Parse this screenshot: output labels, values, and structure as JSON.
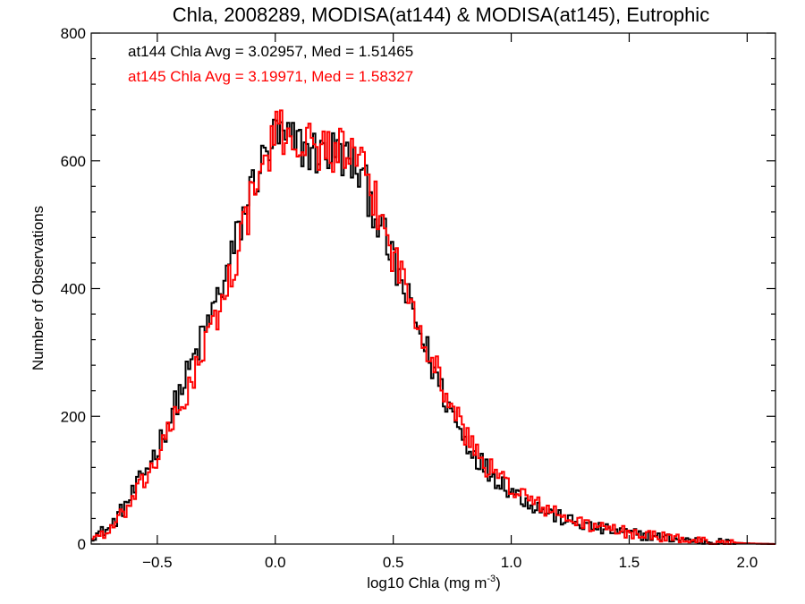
{
  "chart_data": {
    "type": "histogram-step",
    "title": "Chla, 2008289, MODISA(at144) & MODISA(at145), Eutrophic",
    "xlabel": "log10 Chla (mg m",
    "xlabel_sup": "-3",
    "xlabel_close": ")",
    "ylabel": "Number of Observations",
    "xlim": [
      -0.78,
      2.12
    ],
    "ylim": [
      0,
      800
    ],
    "xticks": [
      -0.5,
      0.0,
      0.5,
      1.0,
      1.5,
      2.0
    ],
    "xtick_labels": [
      "−0.5",
      "0.0",
      "0.5",
      "1.0",
      "1.5",
      "2.0"
    ],
    "yticks": [
      0,
      200,
      400,
      600,
      800
    ],
    "ytick_labels": [
      "0",
      "200",
      "400",
      "600",
      "800"
    ],
    "grid": false,
    "annotations": [
      {
        "text": "at144 Chla Avg = 3.02957, Med = 1.51465",
        "color": "#000000"
      },
      {
        "text": "at145 Chla Avg = 3.19971, Med = 1.58327",
        "color": "#ff0000"
      }
    ],
    "bin_width": 0.01,
    "series": [
      {
        "color": "#000000",
        "x": [
          -0.78,
          -0.7,
          -0.6,
          -0.5,
          -0.4,
          -0.3,
          -0.2,
          -0.1,
          -0.05,
          0.0,
          0.05,
          0.1,
          0.15,
          0.2,
          0.25,
          0.3,
          0.35,
          0.4,
          0.5,
          0.6,
          0.7,
          0.8,
          0.9,
          1.0,
          1.1,
          1.2,
          1.3,
          1.4,
          1.5,
          1.6,
          1.7,
          1.8,
          1.9,
          2.0,
          2.12
        ],
        "y": [
          12,
          25,
          80,
          150,
          240,
          330,
          430,
          560,
          600,
          640,
          630,
          625,
          615,
          610,
          615,
          605,
          585,
          545,
          440,
          345,
          245,
          165,
          115,
          85,
          60,
          42,
          30,
          22,
          17,
          12,
          8,
          5,
          3,
          1,
          0
        ]
      },
      {
        "color": "#ff0000",
        "x": [
          -0.78,
          -0.7,
          -0.6,
          -0.5,
          -0.4,
          -0.3,
          -0.2,
          -0.1,
          -0.05,
          0.0,
          0.05,
          0.1,
          0.15,
          0.2,
          0.25,
          0.3,
          0.35,
          0.4,
          0.5,
          0.6,
          0.7,
          0.8,
          0.9,
          1.0,
          1.1,
          1.2,
          1.3,
          1.4,
          1.5,
          1.6,
          1.7,
          1.8,
          1.9,
          2.0,
          2.12
        ],
        "y": [
          10,
          20,
          70,
          135,
          215,
          305,
          405,
          540,
          590,
          640,
          645,
          630,
          625,
          620,
          620,
          612,
          595,
          560,
          455,
          360,
          255,
          175,
          120,
          90,
          64,
          45,
          32,
          24,
          18,
          13,
          9,
          5,
          3,
          1,
          0
        ]
      }
    ]
  }
}
